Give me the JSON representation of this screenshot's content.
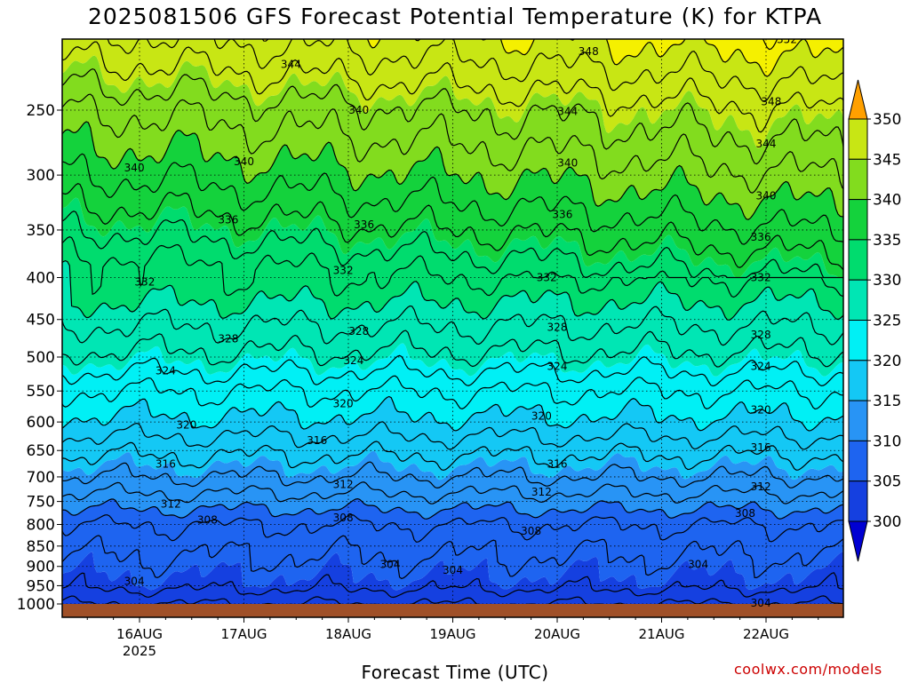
{
  "chart_data": {
    "type": "heatmap",
    "title": "2025081506 GFS Forecast Potential Temperature (K) for KTPA",
    "xlabel": "Forecast Time (UTC)",
    "ylabel": "",
    "x_ticks": [
      "16AUG",
      "17AUG",
      "18AUG",
      "19AUG",
      "20AUG",
      "21AUG",
      "22AUG"
    ],
    "x_year_label": "2025",
    "y_ticks": [
      250,
      300,
      350,
      400,
      450,
      500,
      550,
      600,
      650,
      700,
      750,
      800,
      850,
      900,
      950,
      1000
    ],
    "y_axis": "pressure (hPa), inverted, log scale",
    "ylim": [
      1000,
      200
    ],
    "color_levels": [
      300,
      305,
      310,
      315,
      320,
      325,
      330,
      335,
      340,
      345,
      350
    ],
    "colorbar_ticks": [
      "350",
      "345",
      "340",
      "335",
      "330",
      "325",
      "320",
      "315",
      "310",
      "305",
      "300"
    ],
    "colors": [
      "#0a00b4",
      "#1540e0",
      "#1e64f0",
      "#2894f5",
      "#14c8f5",
      "#00f0f5",
      "#00e6b4",
      "#00dc6e",
      "#14d23c",
      "#82dc1e",
      "#c8e614",
      "#f5f000",
      "#fad200"
    ],
    "below_color": "#0000d2",
    "above_color": "#ffa000",
    "ground_color": "#a05028",
    "contour_interval": 2,
    "contour_labels": [
      {
        "value": "352",
        "x_day": 6.2,
        "p": 205
      },
      {
        "value": "348",
        "x_day": 4.3,
        "p": 212
      },
      {
        "value": "348",
        "x_day": 6.05,
        "p": 244
      },
      {
        "value": "344",
        "x_day": 1.45,
        "p": 220
      },
      {
        "value": "344",
        "x_day": 4.1,
        "p": 251
      },
      {
        "value": "344",
        "x_day": 6.0,
        "p": 275
      },
      {
        "value": "340",
        "x_day": -0.05,
        "p": 294
      },
      {
        "value": "340",
        "x_day": 1.0,
        "p": 289
      },
      {
        "value": "340",
        "x_day": 2.1,
        "p": 250
      },
      {
        "value": "340",
        "x_day": 4.1,
        "p": 290
      },
      {
        "value": "340",
        "x_day": 6.0,
        "p": 318
      },
      {
        "value": "336",
        "x_day": 0.85,
        "p": 340
      },
      {
        "value": "336",
        "x_day": 2.15,
        "p": 345
      },
      {
        "value": "336",
        "x_day": 4.05,
        "p": 335
      },
      {
        "value": "336",
        "x_day": 5.95,
        "p": 357
      },
      {
        "value": "332",
        "x_day": 0.05,
        "p": 405
      },
      {
        "value": "332",
        "x_day": 1.95,
        "p": 392
      },
      {
        "value": "332",
        "x_day": 3.9,
        "p": 400
      },
      {
        "value": "332",
        "x_day": 5.95,
        "p": 400
      },
      {
        "value": "328",
        "x_day": 0.85,
        "p": 475
      },
      {
        "value": "328",
        "x_day": 2.1,
        "p": 465
      },
      {
        "value": "328",
        "x_day": 4.0,
        "p": 460
      },
      {
        "value": "328",
        "x_day": 5.95,
        "p": 470
      },
      {
        "value": "324",
        "x_day": 0.25,
        "p": 520
      },
      {
        "value": "324",
        "x_day": 2.05,
        "p": 505
      },
      {
        "value": "324",
        "x_day": 4.0,
        "p": 513
      },
      {
        "value": "324",
        "x_day": 5.95,
        "p": 513
      },
      {
        "value": "320",
        "x_day": 0.45,
        "p": 605
      },
      {
        "value": "320",
        "x_day": 1.95,
        "p": 570
      },
      {
        "value": "320",
        "x_day": 3.85,
        "p": 590
      },
      {
        "value": "320",
        "x_day": 5.95,
        "p": 580
      },
      {
        "value": "316",
        "x_day": 0.25,
        "p": 675
      },
      {
        "value": "316",
        "x_day": 1.7,
        "p": 632
      },
      {
        "value": "316",
        "x_day": 4.0,
        "p": 675
      },
      {
        "value": "316",
        "x_day": 5.95,
        "p": 645
      },
      {
        "value": "312",
        "x_day": 0.3,
        "p": 755
      },
      {
        "value": "312",
        "x_day": 1.95,
        "p": 715
      },
      {
        "value": "312",
        "x_day": 3.85,
        "p": 730
      },
      {
        "value": "312",
        "x_day": 5.95,
        "p": 720
      },
      {
        "value": "308",
        "x_day": 0.65,
        "p": 790
      },
      {
        "value": "308",
        "x_day": 1.95,
        "p": 785
      },
      {
        "value": "308",
        "x_day": 3.75,
        "p": 815
      },
      {
        "value": "308",
        "x_day": 5.8,
        "p": 775
      },
      {
        "value": "304",
        "x_day": -0.05,
        "p": 938
      },
      {
        "value": "304",
        "x_day": 2.4,
        "p": 895
      },
      {
        "value": "304",
        "x_day": 3.0,
        "p": 910
      },
      {
        "value": "304",
        "x_day": 5.35,
        "p": 895
      },
      {
        "value": "304",
        "x_day": 5.95,
        "p": 998
      }
    ]
  },
  "credit": "coolwx.com/models"
}
